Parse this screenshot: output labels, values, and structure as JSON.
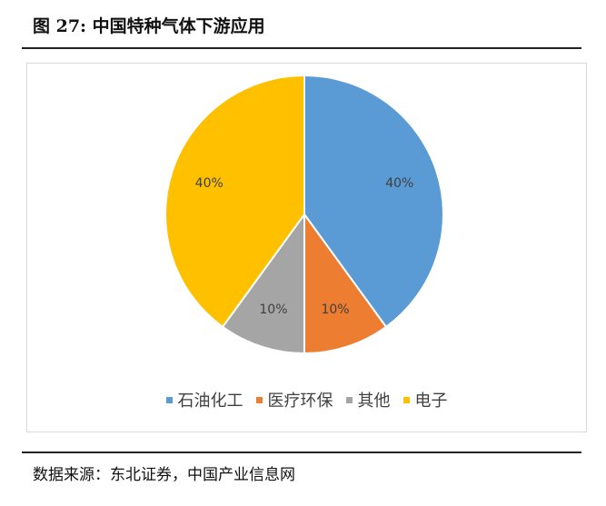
{
  "figure": {
    "title": "图  27:  中国特种气体下游应用",
    "source": "数据来源：东北证券，中国产业信息网"
  },
  "chart_data": {
    "type": "pie",
    "title": "",
    "start_angle_deg": 0,
    "direction": "clockwise",
    "slices": [
      {
        "name": "石油化工",
        "value": 40,
        "label": "40%",
        "color": "#5B9BD5"
      },
      {
        "name": "医疗环保",
        "value": 10,
        "label": "10%",
        "color": "#ED7D31"
      },
      {
        "name": "其他",
        "value": 10,
        "label": "10%",
        "color": "#A5A5A5"
      },
      {
        "name": "电子",
        "value": 40,
        "label": "40%",
        "color": "#FFC000"
      }
    ],
    "legend_position": "bottom"
  }
}
